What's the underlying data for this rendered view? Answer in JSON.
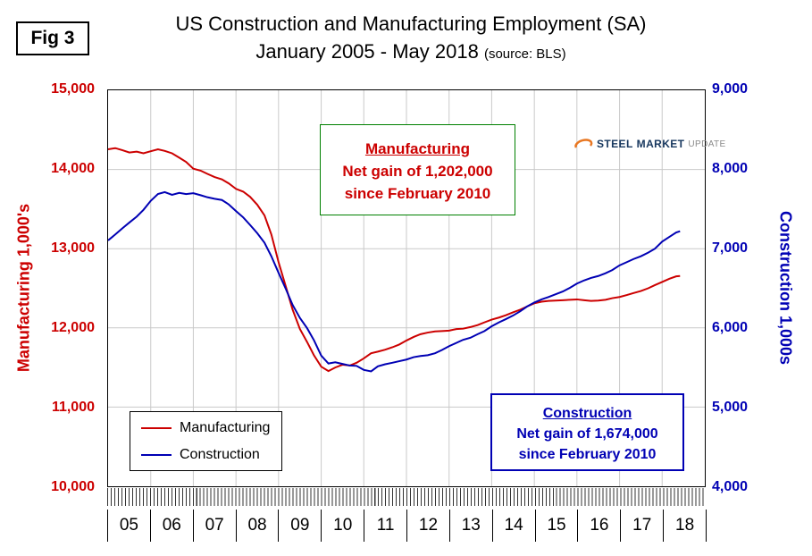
{
  "figure_label": "Fig 3",
  "header": {
    "title": "US Construction and Manufacturing Employment (SA)",
    "subtitle": "January 2005 - May 2018",
    "source_note": "(source: BLS)"
  },
  "logo": {
    "steel": "STEEL",
    "market": "MARKET",
    "update": "UPDATE",
    "accent_color": "#e87722"
  },
  "left_axis": {
    "title": "Manufacturing  1,000's",
    "color": "#cc0000",
    "ticks": [
      "15,000",
      "14,000",
      "13,000",
      "12,000",
      "11,000",
      "10,000"
    ]
  },
  "right_axis": {
    "title": "Construction 1,000s",
    "color": "#0000b4",
    "ticks": [
      "9,000",
      "8,000",
      "7,000",
      "6,000",
      "5,000",
      "4,000"
    ]
  },
  "x_axis": {
    "labels": [
      "05",
      "06",
      "07",
      "08",
      "09",
      "10",
      "11",
      "12",
      "13",
      "14",
      "15",
      "16",
      "17",
      "18"
    ]
  },
  "legend": {
    "items": [
      {
        "label": "Manufacturing",
        "color": "#cc0000"
      },
      {
        "label": "Construction",
        "color": "#0000b4"
      }
    ]
  },
  "annotations": {
    "manufacturing": {
      "title": "Manufacturing",
      "line1": "Net gain of 1,202,000",
      "line2": "since February 2010",
      "text_color": "#cc0000",
      "border_color": "#008000"
    },
    "construction": {
      "title": "Construction",
      "line1": "Net gain of 1,674,000",
      "line2": "since February 2010",
      "text_color": "#0000b4",
      "border_color": "#0000b4"
    }
  },
  "chart_data": {
    "type": "line",
    "title": "US Construction and Manufacturing Employment (SA)",
    "subtitle": "January 2005 - May 2018 (source: BLS)",
    "grid": true,
    "legend_position": "lower-left",
    "x_range": [
      2005,
      2019
    ],
    "x_unit": "year (monthly observations, Jan 2005 - May 2018)",
    "left_axis": {
      "label": "Manufacturing 1,000's",
      "range": [
        10000,
        15000
      ],
      "tick_step": 1000
    },
    "right_axis": {
      "label": "Construction 1,000s",
      "range": [
        4000,
        9000
      ],
      "tick_step": 1000
    },
    "x": [
      2005.0,
      2005.17,
      2005.33,
      2005.5,
      2005.67,
      2005.83,
      2006.0,
      2006.17,
      2006.33,
      2006.5,
      2006.67,
      2006.83,
      2007.0,
      2007.17,
      2007.33,
      2007.5,
      2007.67,
      2007.83,
      2008.0,
      2008.17,
      2008.33,
      2008.5,
      2008.67,
      2008.83,
      2009.0,
      2009.17,
      2009.33,
      2009.5,
      2009.67,
      2009.83,
      2010.0,
      2010.17,
      2010.33,
      2010.5,
      2010.67,
      2010.83,
      2011.0,
      2011.17,
      2011.33,
      2011.5,
      2011.67,
      2011.83,
      2012.0,
      2012.17,
      2012.33,
      2012.5,
      2012.67,
      2012.83,
      2013.0,
      2013.17,
      2013.33,
      2013.5,
      2013.67,
      2013.83,
      2014.0,
      2014.17,
      2014.33,
      2014.5,
      2014.67,
      2014.83,
      2015.0,
      2015.17,
      2015.33,
      2015.5,
      2015.67,
      2015.83,
      2016.0,
      2016.17,
      2016.33,
      2016.5,
      2016.67,
      2016.83,
      2017.0,
      2017.17,
      2017.33,
      2017.5,
      2017.67,
      2017.83,
      2018.0,
      2018.17,
      2018.33,
      2018.42
    ],
    "series": [
      {
        "name": "Manufacturing",
        "axis": "left",
        "color": "#cc0000",
        "values": [
          14255,
          14270,
          14245,
          14215,
          14225,
          14205,
          14230,
          14255,
          14235,
          14205,
          14150,
          14095,
          14010,
          13985,
          13945,
          13905,
          13875,
          13825,
          13755,
          13720,
          13655,
          13555,
          13420,
          13180,
          12830,
          12520,
          12230,
          11985,
          11820,
          11655,
          11510,
          11455,
          11500,
          11535,
          11525,
          11560,
          11615,
          11680,
          11700,
          11725,
          11755,
          11790,
          11840,
          11885,
          11920,
          11940,
          11955,
          11960,
          11965,
          11985,
          11990,
          12010,
          12035,
          12070,
          12105,
          12130,
          12160,
          12195,
          12230,
          12270,
          12310,
          12330,
          12340,
          12345,
          12350,
          12355,
          12360,
          12350,
          12340,
          12345,
          12355,
          12375,
          12390,
          12415,
          12440,
          12465,
          12500,
          12540,
          12580,
          12620,
          12650,
          12655
        ]
      },
      {
        "name": "Construction",
        "axis": "right",
        "color": "#0000b4",
        "values": [
          7105,
          7180,
          7255,
          7330,
          7405,
          7490,
          7605,
          7690,
          7715,
          7680,
          7705,
          7690,
          7700,
          7675,
          7650,
          7630,
          7615,
          7560,
          7475,
          7395,
          7300,
          7195,
          7075,
          6905,
          6695,
          6490,
          6290,
          6125,
          5995,
          5845,
          5650,
          5550,
          5565,
          5545,
          5525,
          5520,
          5470,
          5450,
          5515,
          5540,
          5560,
          5580,
          5600,
          5630,
          5645,
          5655,
          5680,
          5720,
          5770,
          5810,
          5850,
          5875,
          5920,
          5960,
          6020,
          6070,
          6110,
          6155,
          6210,
          6270,
          6320,
          6360,
          6390,
          6425,
          6460,
          6505,
          6560,
          6600,
          6630,
          6655,
          6690,
          6730,
          6790,
          6830,
          6870,
          6905,
          6950,
          7000,
          7090,
          7150,
          7205,
          7220
        ]
      }
    ]
  }
}
